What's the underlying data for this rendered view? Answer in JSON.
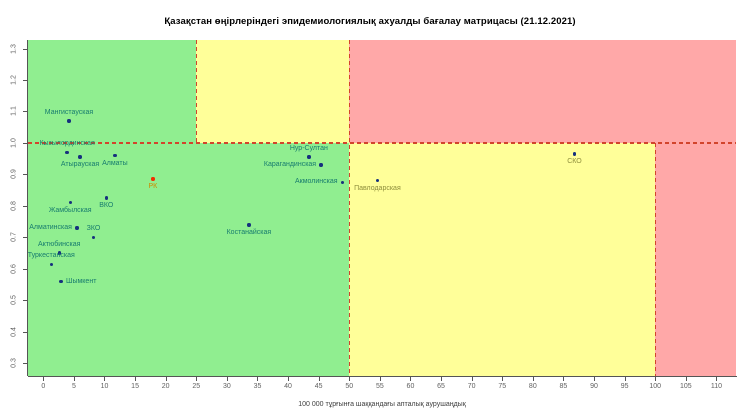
{
  "title": "Қазақстан өңірлеріндегі эпидемиологиялық ахуалды бағалау матрицасы (21.12.2021)",
  "colors": {
    "zone_green": "#90EE90",
    "zone_yellow": "#FFFF99",
    "zone_red": "#FFA8A8",
    "dash_line": "#D2442C",
    "point": "#16317D",
    "label_green_zone": "#177C6E",
    "label_yellow_zone": "#8E8E3C",
    "rk_point": "#F03000",
    "rk_label": "#CD8A00",
    "axis": "#555555",
    "tick_text": "#606060"
  },
  "chart_data": {
    "type": "scatter",
    "title": "Қазақстан өңірлеріндегі эпидемиологиялық ахуалды бағалау матрицасы (21.12.2021)",
    "xlabel": "100 000 тұрғынға шаққандағы апталық аурушаңдық",
    "ylabel": "",
    "xlim": [
      -2.5,
      113.2
    ],
    "ylim": [
      0.26,
      1.327
    ],
    "x_ticks": [
      0,
      5,
      10,
      15,
      20,
      25,
      30,
      35,
      40,
      45,
      50,
      55,
      60,
      65,
      70,
      75,
      80,
      85,
      90,
      95,
      100,
      105,
      110
    ],
    "y_ticks": [
      "1.3",
      "1.2",
      "1.1",
      "1.0",
      "0.9",
      "0.8",
      "0.7",
      "0.6",
      "0.5",
      "0.4",
      "0.3"
    ],
    "grid": false,
    "legend": "none",
    "thresholds": {
      "x_warn": 25,
      "x_mid": 50,
      "x_crit": 100,
      "y_line": 1.0
    },
    "points": [
      {
        "name": "Мангистауская",
        "x": 4.2,
        "y": 1.07,
        "label_pos": "above",
        "zone": "green"
      },
      {
        "name": "Кызылординская",
        "x": 3.9,
        "y": 0.97,
        "label_pos": "above",
        "zone": "green"
      },
      {
        "name": "Атырауская",
        "x": 6.0,
        "y": 0.955,
        "label_pos": "below",
        "zone": "green"
      },
      {
        "name": "Алматы",
        "x": 11.7,
        "y": 0.96,
        "label_pos": "below",
        "zone": "green"
      },
      {
        "name": "РК",
        "x": 17.9,
        "y": 0.885,
        "label_pos": "below",
        "zone": "green",
        "special": "rk"
      },
      {
        "name": "Нур-Султан",
        "x": 43.4,
        "y": 0.955,
        "label_pos": "above",
        "zone": "green"
      },
      {
        "name": "Карагандинская",
        "x": 45.4,
        "y": 0.93,
        "label_pos": "left",
        "zone": "green"
      },
      {
        "name": "Акмолинская",
        "x": 48.9,
        "y": 0.875,
        "label_pos": "left",
        "zone": "green"
      },
      {
        "name": "Павлодарская",
        "x": 54.6,
        "y": 0.88,
        "label_pos": "below",
        "zone": "yellow"
      },
      {
        "name": "СКО",
        "x": 86.8,
        "y": 0.965,
        "label_pos": "below",
        "zone": "yellow"
      },
      {
        "name": "ВКО",
        "x": 10.3,
        "y": 0.825,
        "label_pos": "below",
        "zone": "green"
      },
      {
        "name": "Жамбылская",
        "x": 4.4,
        "y": 0.81,
        "label_pos": "below",
        "zone": "green"
      },
      {
        "name": "Алматинская",
        "x": 5.5,
        "y": 0.73,
        "label_pos": "left",
        "zone": "green"
      },
      {
        "name": "ЗКО",
        "x": 8.2,
        "y": 0.7,
        "label_pos": "above",
        "zone": "green"
      },
      {
        "name": "Актюбинская",
        "x": 2.6,
        "y": 0.65,
        "label_pos": "above",
        "zone": "green"
      },
      {
        "name": "Туркестанская",
        "x": 1.3,
        "y": 0.615,
        "label_pos": "above",
        "zone": "green"
      },
      {
        "name": "Шымкент",
        "x": 2.9,
        "y": 0.56,
        "label_pos": "right",
        "zone": "green"
      },
      {
        "name": "Костанайская",
        "x": 33.6,
        "y": 0.74,
        "label_pos": "below",
        "zone": "green"
      }
    ]
  }
}
